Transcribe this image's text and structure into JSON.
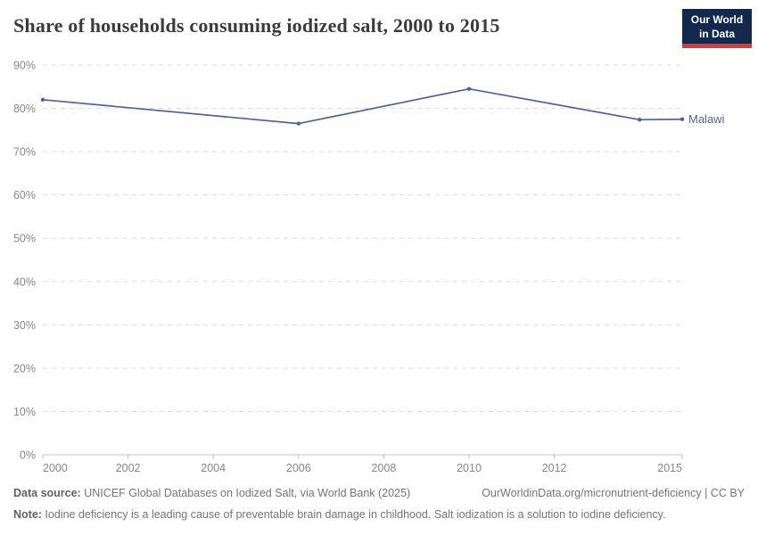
{
  "header": {
    "logo": {
      "line1": "Our World",
      "line2": "in Data"
    }
  },
  "colors": {
    "line": "#4a63a3",
    "grid": "#dcdcdc",
    "axis": "#c6c6c6",
    "tick": "#b9b9b9",
    "tick_label": "#868686",
    "title": "#3b3b3b",
    "footer_text": "#757575",
    "logo_bg": "#12294d",
    "logo_red": "#dc3a34"
  },
  "chart_data": {
    "type": "line",
    "title": "Share of households consuming iodized salt, 2000 to 2015",
    "xlabel": "",
    "ylabel": "",
    "xlim": [
      2000,
      2015
    ],
    "ylim": [
      0,
      90
    ],
    "x_ticks": [
      2000,
      2002,
      2004,
      2006,
      2008,
      2010,
      2012,
      2015
    ],
    "y_ticks": [
      0,
      10,
      20,
      30,
      40,
      50,
      60,
      70,
      80,
      90
    ],
    "y_tick_suffix": "%",
    "grid": "horizontal-dashed",
    "legend_position": "end-of-line-label",
    "series": [
      {
        "name": "Malawi",
        "color": "#4a63a3",
        "x": [
          2000,
          2006,
          2010,
          2014,
          2015
        ],
        "values": [
          82,
          76.5,
          84.5,
          77.4,
          77.5
        ]
      }
    ]
  },
  "footer": {
    "source_label": "Data source:",
    "source_text": " UNICEF Global Databases on Iodized Salt, via World Bank (2025)",
    "link_text": "OurWorldinData.org/micronutrient-deficiency | CC BY",
    "note_label": "Note:",
    "note_text": " Iodine deficiency is a leading cause of preventable brain damage in childhood. Salt iodization is a solution to iodine deficiency."
  }
}
